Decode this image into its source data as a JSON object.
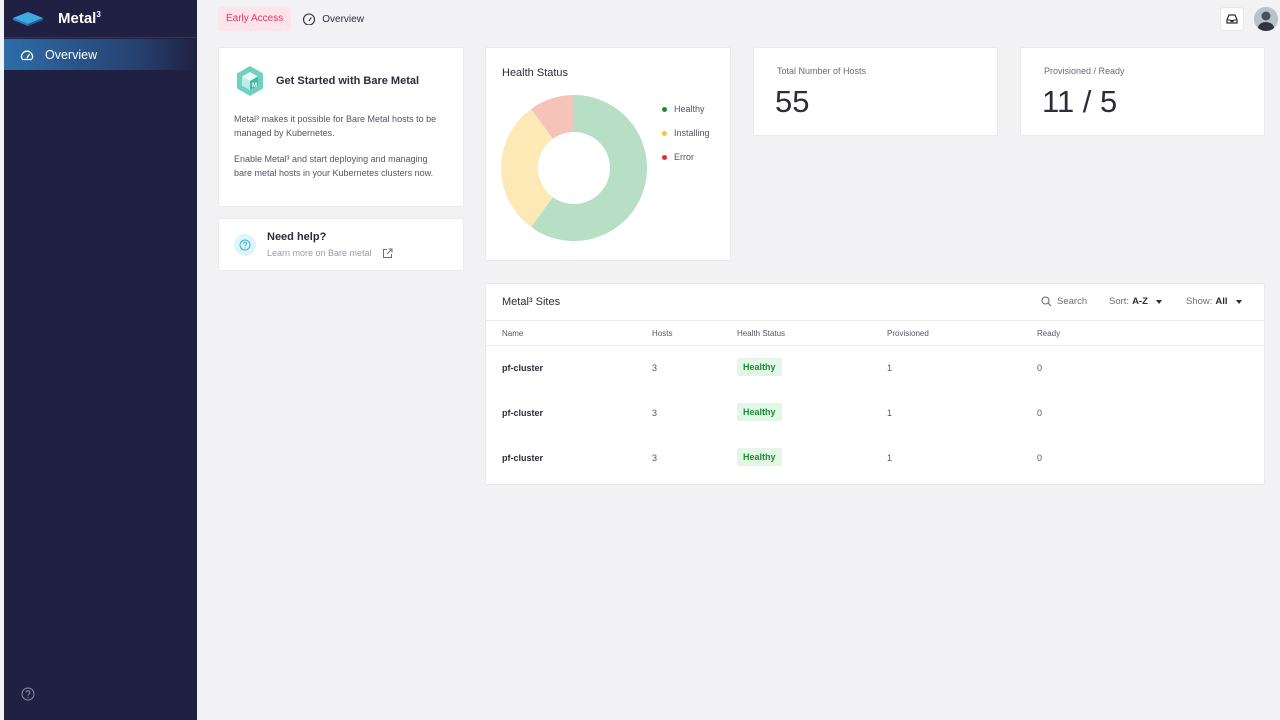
{
  "app": {
    "name": "Metal",
    "name_sup": "3"
  },
  "sidebar": {
    "items": [
      {
        "label": "Overview",
        "icon": "dashboard-icon"
      }
    ],
    "help_icon": "help-icon"
  },
  "topbar": {
    "badge": "Early Access",
    "tab": "Overview"
  },
  "get_started": {
    "title": "Get Started with Bare Metal",
    "p1": "Metal³ makes it possible for Bare Metal hosts to be managed by Kubernetes.",
    "p2": "Enable Metal³ and start deploying and managing bare metal hosts in your Kubernetes clusters now."
  },
  "need_help": {
    "title": "Need help?",
    "link": "Learn more on Bare metal"
  },
  "health_status": {
    "title": "Health Status",
    "legend": [
      {
        "label": "Healthy",
        "color": "#1e8a3a"
      },
      {
        "label": "Installing",
        "color": "#f5c344"
      },
      {
        "label": "Error",
        "color": "#e0312f"
      }
    ]
  },
  "chart_data": {
    "type": "pie",
    "title": "Health Status",
    "categories": [
      "Healthy",
      "Installing",
      "Error"
    ],
    "values": [
      60,
      30,
      10
    ],
    "colors": [
      "#b7dfc6",
      "#fde9b6",
      "#f6c3b9"
    ],
    "legend": "right"
  },
  "stats": {
    "total_label": "Total Number of Hosts",
    "total_value": "55",
    "prov_label": "Provisioned / Ready",
    "prov_value": "11 / 5"
  },
  "sites": {
    "title": "Metal³ Sites",
    "search": "Search",
    "sort_label": "Sort:",
    "sort_value": "A-Z",
    "show_label": "Show:",
    "show_value": "All",
    "columns": [
      "Name",
      "Hosts",
      "Health Status",
      "Provisioned",
      "Ready"
    ],
    "rows": [
      [
        "pf-cluster",
        "3",
        "Healthy",
        "1",
        "0"
      ],
      [
        "pf-cluster",
        "3",
        "Healthy",
        "1",
        "0"
      ],
      [
        "pf-cluster",
        "3",
        "Healthy",
        "1",
        "0"
      ]
    ]
  }
}
